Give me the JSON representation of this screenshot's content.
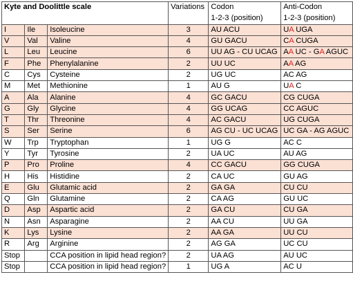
{
  "header": {
    "title": "Kyte and Doolittle scale",
    "variations": "Variations",
    "codon": "Codon",
    "anticodon": "Anti-Codon",
    "position_codon": "1-2-3 (position)",
    "position_anticodon": "1-2-3 (position)"
  },
  "rows": [
    {
      "code": "I",
      "abbr": "Ile",
      "name": "Isoleucine",
      "var": "3",
      "codon": "AU ACU",
      "anti": [
        [
          "U",
          ""
        ],
        [
          "A",
          "red"
        ],
        [
          " UGA",
          ""
        ]
      ],
      "shaded": true
    },
    {
      "code": "V",
      "abbr": "Val",
      "name": "Valine",
      "var": "4",
      "codon": "GU GACU",
      "anti": [
        [
          "C",
          ""
        ],
        [
          "A",
          "red"
        ],
        [
          " CUGA",
          ""
        ]
      ],
      "shaded": true
    },
    {
      "code": "L",
      "abbr": "Leu",
      "name": "Leucine",
      "var": "6",
      "codon": "UU AG - CU UCAG",
      "anti": [
        [
          "A",
          ""
        ],
        [
          "A",
          "red"
        ],
        [
          " UC - G",
          ""
        ],
        [
          "A",
          "red"
        ],
        [
          " AGUC",
          ""
        ]
      ],
      "shaded": true
    },
    {
      "code": "F",
      "abbr": "Phe",
      "name": "Phenylalanine",
      "var": "2",
      "codon": "UU UC",
      "anti": [
        [
          "A",
          ""
        ],
        [
          "A",
          "red"
        ],
        [
          " AG",
          ""
        ]
      ],
      "shaded": true
    },
    {
      "code": "C",
      "abbr": "Cys",
      "name": "Cysteine",
      "var": "2",
      "codon": "UG UC",
      "anti": [
        [
          "AC AG",
          ""
        ]
      ],
      "shaded": false
    },
    {
      "code": "M",
      "abbr": "Met",
      "name": "Methionine",
      "var": "1",
      "codon": "AU G",
      "anti": [
        [
          "U",
          ""
        ],
        [
          "A",
          "red"
        ],
        [
          " C",
          ""
        ]
      ],
      "shaded": false
    },
    {
      "code": "A",
      "abbr": "Ala",
      "name": "Alanine",
      "var": "4",
      "codon": "GC GACU",
      "anti": [
        [
          "CG CUGA",
          ""
        ]
      ],
      "shaded": true
    },
    {
      "code": "G",
      "abbr": "Gly",
      "name": "Glycine",
      "var": "4",
      "codon": "GG UCAG",
      "anti": [
        [
          "CC AGUC",
          ""
        ]
      ],
      "shaded": true
    },
    {
      "code": "T",
      "abbr": "Thr",
      "name": "Threonine",
      "var": "4",
      "codon": "AC GACU",
      "anti": [
        [
          "UG CUGA",
          ""
        ]
      ],
      "shaded": true
    },
    {
      "code": "S",
      "abbr": "Ser",
      "name": "Serine",
      "var": "6",
      "codon": "AG CU - UC UCAG",
      "anti": [
        [
          "UC GA - AG AGUC",
          ""
        ]
      ],
      "shaded": true
    },
    {
      "code": "W",
      "abbr": "Trp",
      "name": "Tryptophan",
      "var": "1",
      "codon": "UG G",
      "anti": [
        [
          "AC C",
          ""
        ]
      ],
      "shaded": false
    },
    {
      "code": "Y",
      "abbr": "Tyr",
      "name": "Tyrosine",
      "var": "2",
      "codon": "UA UC",
      "anti": [
        [
          "AU AG",
          ""
        ]
      ],
      "shaded": false
    },
    {
      "code": "P",
      "abbr": "Pro",
      "name": "Proline",
      "var": "4",
      "codon": "CC GACU",
      "anti": [
        [
          "GG CUGA",
          ""
        ]
      ],
      "shaded": true
    },
    {
      "code": "H",
      "abbr": "His",
      "name": "Histidine",
      "var": "2",
      "codon": "CA UC",
      "anti": [
        [
          "GU AG",
          ""
        ]
      ],
      "shaded": false
    },
    {
      "code": "E",
      "abbr": "Glu",
      "name": "Glutamic acid",
      "var": "2",
      "codon": "GA GA",
      "anti": [
        [
          "CU CU",
          ""
        ]
      ],
      "shaded": true
    },
    {
      "code": "Q",
      "abbr": "Gln",
      "name": "Glutamine",
      "var": "2",
      "codon": "CA AG",
      "anti": [
        [
          "GU UC",
          ""
        ]
      ],
      "shaded": false
    },
    {
      "code": "D",
      "abbr": "Asp",
      "name": "Aspartic acid",
      "var": "2",
      "codon": "GA CU",
      "anti": [
        [
          "CU GA",
          ""
        ]
      ],
      "shaded": true
    },
    {
      "code": "N",
      "abbr": "Asn",
      "name": "Asparagine",
      "var": "2",
      "codon": "AA CU",
      "anti": [
        [
          "UU GA",
          ""
        ]
      ],
      "shaded": false
    },
    {
      "code": "K",
      "abbr": "Lys",
      "name": "Lysine",
      "var": "2",
      "codon": "AA GA",
      "anti": [
        [
          "UU CU",
          ""
        ]
      ],
      "shaded": true
    },
    {
      "code": "R",
      "abbr": "Arg",
      "name": "Arginine",
      "var": "2",
      "codon": "AG GA",
      "anti": [
        [
          "UC CU",
          ""
        ]
      ],
      "shaded": false
    },
    {
      "code": "Stop",
      "abbr": "",
      "name": "CCA position in lipid head region?",
      "var": "2",
      "codon": "UA AG",
      "anti": [
        [
          "AU UC",
          ""
        ]
      ],
      "shaded": false
    },
    {
      "code": "Stop",
      "abbr": "",
      "name": "CCA position in lipid head region?",
      "var": "1",
      "codon": "UG A",
      "anti": [
        [
          "AC U",
          ""
        ]
      ],
      "shaded": false
    }
  ],
  "colors": {
    "shade": "#fbe0d4",
    "highlight": "#e0201a"
  }
}
